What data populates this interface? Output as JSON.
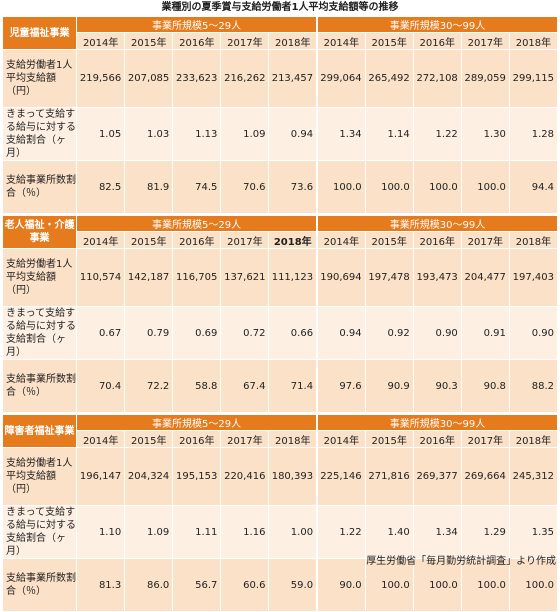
{
  "title": "業種別の夏季賞与支給労働者1人平均支給額等の推移",
  "footer": "厚生労働省「毎月勤労統計調査」より作成",
  "group_headers": [
    "事業所規模5～29人",
    "事業所規模30～99人"
  ],
  "years": [
    "2014年",
    "2015年",
    "2016年",
    "2017年",
    "2018年"
  ],
  "row_labels": {
    "amount": "支給労働者1人平均支給額（円）",
    "months": "きまって支給する給与に対する支給割合（ヶ月）",
    "pct": "支給事業所数割合（％）"
  },
  "sections": [
    {
      "name": "児童福祉事業",
      "groups": [
        "事業所規模5～29人",
        "事業所規模30～99人"
      ],
      "years": [
        "2014年",
        "2015年",
        "2016年",
        "2017年",
        "2018年",
        "2014年",
        "2015年",
        "2016年",
        "2017年",
        "2018年"
      ],
      "amount": [
        "219,566",
        "207,085",
        "233,623",
        "216,262",
        "213,457",
        "299,064",
        "265,492",
        "272,108",
        "289,059",
        "299,115"
      ],
      "months": [
        "1.05",
        "1.03",
        "1.13",
        "1.09",
        "0.94",
        "1.34",
        "1.14",
        "1.22",
        "1.30",
        "1.28"
      ],
      "pct": [
        "82.5",
        "81.9",
        "74.5",
        "70.6",
        "73.6",
        "100.0",
        "100.0",
        "100.0",
        "100.0",
        "94.4"
      ]
    },
    {
      "name": "老人福祉・介護事業",
      "groups": [
        "事業所規模5～29人",
        "事業所規模30～99人"
      ],
      "years": [
        "2014年",
        "2015年",
        "2016年",
        "2017年",
        "2018年",
        "2014年",
        "2015年",
        "2016年",
        "2017年",
        "2018年"
      ],
      "amount": [
        "110,574",
        "142,187",
        "116,705",
        "137,621",
        "111,123",
        "190,694",
        "197,478",
        "193,473",
        "204,477",
        "197,403"
      ],
      "months": [
        "0.67",
        "0.79",
        "0.69",
        "0.72",
        "0.66",
        "0.94",
        "0.92",
        "0.90",
        "0.91",
        "0.90"
      ],
      "pct": [
        "70.4",
        "72.2",
        "58.8",
        "67.4",
        "71.4",
        "97.6",
        "90.9",
        "90.3",
        "90.8",
        "88.2"
      ]
    },
    {
      "name": "障害者福祉事業",
      "groups": [
        "事業所規模5～29人",
        "事業所規模30～99人"
      ],
      "years": [
        "2014年",
        "2015年",
        "2016年",
        "2017年",
        "2018年",
        "2014年",
        "2015年",
        "2016年",
        "2017年",
        "2018年"
      ],
      "amount": [
        "196,147",
        "204,324",
        "195,153",
        "220,416",
        "180,393",
        "225,146",
        "271,816",
        "269,377",
        "269,664",
        "245,312"
      ],
      "months": [
        "1.10",
        "1.09",
        "1.11",
        "1.16",
        "1.00",
        "1.22",
        "1.40",
        "1.34",
        "1.29",
        "1.35"
      ],
      "pct": [
        "81.3",
        "86.0",
        "56.7",
        "60.6",
        "59.0",
        "90.0",
        "100.0",
        "100.0",
        "100.0",
        "100.0"
      ]
    }
  ]
}
